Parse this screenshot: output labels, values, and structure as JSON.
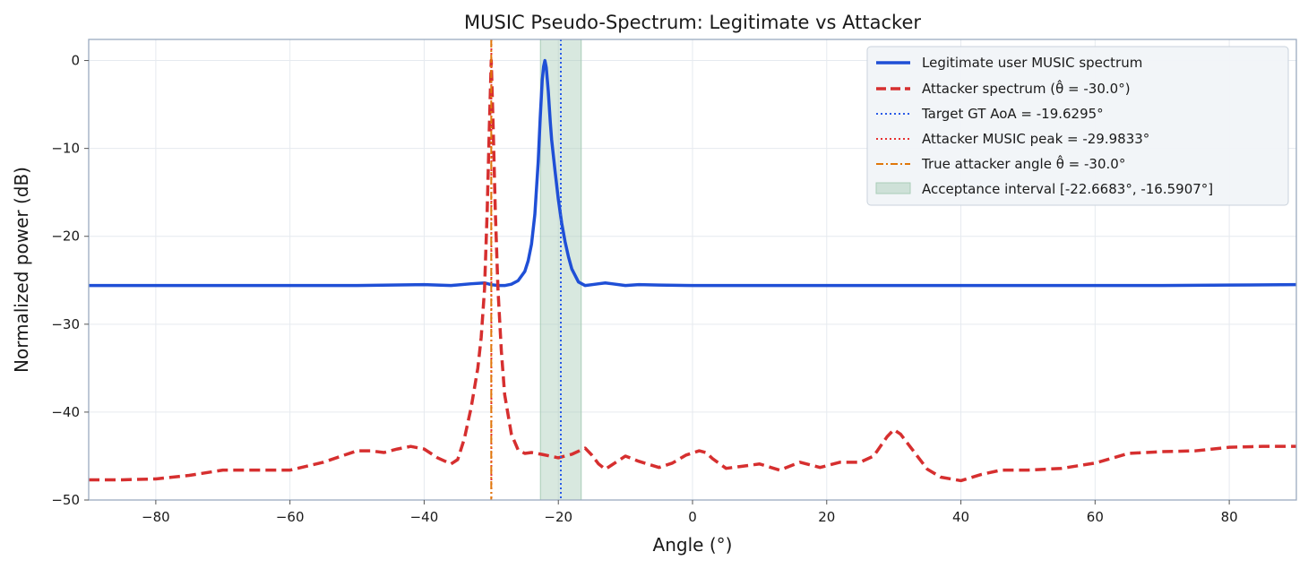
{
  "chart_data": {
    "type": "line",
    "title": "MUSIC Pseudo-Spectrum: Legitimate vs Attacker",
    "xlabel": "Angle (°)",
    "ylabel": "Normalized power (dB)",
    "xlim": [
      -90,
      90
    ],
    "ylim": [
      -50,
      2.4
    ],
    "xticks": [
      -80,
      -60,
      -40,
      -20,
      0,
      20,
      40,
      60,
      80
    ],
    "xtick_labels": [
      "−80",
      "−60",
      "−40",
      "−20",
      "0",
      "20",
      "40",
      "60",
      "80"
    ],
    "yticks": [
      0,
      -10,
      -20,
      -30,
      -40,
      -50
    ],
    "ytick_labels": [
      "0",
      "−10",
      "−20",
      "−30",
      "−40",
      "−50"
    ],
    "grid": true,
    "legend_position": "top-right",
    "colors": {
      "legit": "#1f4fd6",
      "attacker": "#d62f2f",
      "target_gt": "#2a5be8",
      "attacker_peak": "#e83030",
      "true_attacker": "#e0770a",
      "acceptance_fill": "#a9cdb8",
      "axis_frame": "#9aabc0",
      "grid": "#e6eaef"
    },
    "series": [
      {
        "name": "Legitimate user MUSIC spectrum",
        "style": "solid",
        "x": [
          -90,
          -80,
          -70,
          -60,
          -50,
          -45,
          -40,
          -36,
          -33,
          -31,
          -30,
          -29,
          -28,
          -27,
          -26,
          -25,
          -24.5,
          -24,
          -23.5,
          -23,
          -22.7,
          -22.4,
          -22.2,
          -22,
          -21.8,
          -21.5,
          -21.2,
          -21,
          -20.5,
          -20,
          -19.5,
          -19,
          -18.5,
          -18,
          -17,
          -16,
          -15,
          -14,
          -13,
          -12,
          -10,
          -8,
          -5,
          0,
          10,
          20,
          30,
          40,
          50,
          60,
          70,
          80,
          90
        ],
        "y": [
          -25.6,
          -25.6,
          -25.6,
          -25.6,
          -25.6,
          -25.55,
          -25.5,
          -25.6,
          -25.4,
          -25.3,
          -25.5,
          -25.6,
          -25.6,
          -25.45,
          -25.05,
          -24.0,
          -22.8,
          -20.9,
          -17.5,
          -11.5,
          -6.5,
          -2.2,
          -0.7,
          0.0,
          -0.8,
          -3.5,
          -7.0,
          -9.0,
          -12.5,
          -15.8,
          -18.5,
          -20.6,
          -22.3,
          -23.7,
          -25.2,
          -25.6,
          -25.5,
          -25.4,
          -25.3,
          -25.4,
          -25.6,
          -25.5,
          -25.55,
          -25.6,
          -25.6,
          -25.6,
          -25.6,
          -25.6,
          -25.6,
          -25.6,
          -25.6,
          -25.55,
          -25.5
        ]
      },
      {
        "name": "Attacker spectrum  (θ̂ = -30.0°)",
        "style": "dashed",
        "x": [
          -90,
          -85,
          -80,
          -75,
          -70,
          -65,
          -60,
          -55,
          -50,
          -48,
          -46,
          -44,
          -42,
          -40,
          -38,
          -36,
          -35,
          -34,
          -33,
          -32,
          -31.5,
          -31,
          -30.6,
          -30.3,
          -30,
          -29.7,
          -29.4,
          -29,
          -28.5,
          -28,
          -27,
          -26,
          -25,
          -24,
          -22.5,
          -20,
          -18,
          -16,
          -15,
          -14,
          -13,
          -12,
          -10,
          -8,
          -5,
          -3,
          -1,
          1,
          2,
          3,
          5,
          7,
          10,
          13,
          16,
          19,
          22,
          25,
          27,
          29,
          30,
          31,
          33,
          35,
          37,
          40,
          43,
          46,
          50,
          55,
          60,
          65,
          70,
          75,
          80,
          85,
          90
        ],
        "y": [
          -47.7,
          -47.7,
          -47.6,
          -47.2,
          -46.6,
          -46.6,
          -46.6,
          -45.7,
          -44.4,
          -44.4,
          -44.6,
          -44.2,
          -43.9,
          -44.2,
          -45.2,
          -45.9,
          -45.4,
          -43.0,
          -39.5,
          -35.0,
          -31.5,
          -26.0,
          -17.0,
          -8.0,
          0.0,
          -8.0,
          -17.0,
          -26.0,
          -33.0,
          -38.0,
          -42.5,
          -44.3,
          -44.7,
          -44.6,
          -44.8,
          -45.2,
          -44.8,
          -44.1,
          -44.9,
          -45.9,
          -46.5,
          -46.0,
          -45.0,
          -45.6,
          -46.3,
          -45.8,
          -44.9,
          -44.4,
          -44.6,
          -45.3,
          -46.4,
          -46.2,
          -45.9,
          -46.6,
          -45.7,
          -46.3,
          -45.7,
          -45.7,
          -45.0,
          -42.8,
          -42.0,
          -42.5,
          -44.5,
          -46.5,
          -47.4,
          -47.8,
          -47.1,
          -46.6,
          -46.6,
          -46.4,
          -45.8,
          -44.7,
          -44.5,
          -44.4,
          -44.0,
          -43.9,
          -43.9
        ]
      }
    ],
    "vertical_lines": [
      {
        "name": "Target GT AoA = -19.6295°",
        "x": -19.6295,
        "style": "dotted",
        "color_key": "target_gt"
      },
      {
        "name": "Attacker MUSIC peak = -29.9833°",
        "x": -29.9833,
        "style": "dotted",
        "color_key": "attacker_peak"
      },
      {
        "name": "True attacker angle θ̂ = -30.0°",
        "x": -30.0,
        "style": "dashdot",
        "color_key": "true_attacker"
      }
    ],
    "acceptance_interval": {
      "name": "Acceptance interval [-22.6683°, -16.5907°]",
      "x_min": -22.6683,
      "x_max": -16.5907
    }
  }
}
